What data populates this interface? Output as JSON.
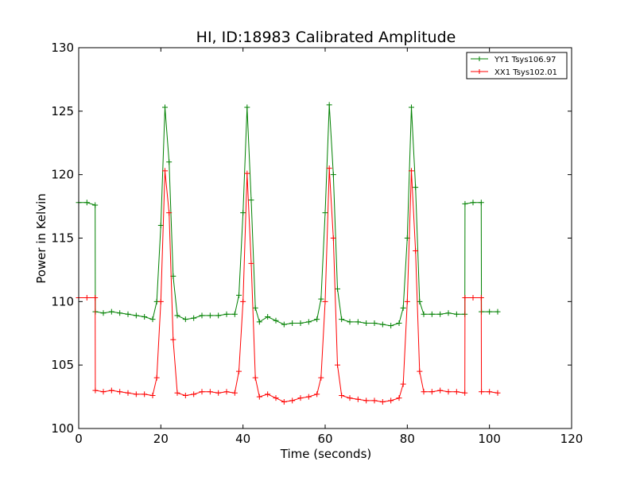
{
  "chart_data": {
    "type": "line",
    "title": "HI, ID:18983 Calibrated Amplitude",
    "xlabel": "Time (seconds)",
    "ylabel": "Power in Kelvin",
    "xlim": [
      0,
      120
    ],
    "ylim": [
      100,
      130
    ],
    "xticks": [
      "0",
      "20",
      "40",
      "60",
      "80",
      "100",
      "120"
    ],
    "yticks": [
      "100",
      "105",
      "110",
      "115",
      "120",
      "125",
      "130"
    ],
    "grid": false,
    "legend_position": "top-right",
    "series": [
      {
        "name": "YY1 Tsys106.97",
        "color": "#008000",
        "marker": "+",
        "x": [
          0,
          2,
          4,
          4.05,
          6,
          8,
          10,
          12,
          14,
          16,
          18,
          19,
          20,
          21,
          22,
          23,
          24,
          26,
          28,
          30,
          32,
          34,
          36,
          38,
          39,
          40,
          41,
          42,
          43,
          44,
          46,
          48,
          50,
          52,
          54,
          56,
          58,
          59,
          60,
          61,
          62,
          63,
          64,
          66,
          68,
          70,
          72,
          74,
          76,
          78,
          79,
          80,
          81,
          82,
          83,
          84,
          86,
          88,
          90,
          92,
          94,
          94.05,
          96,
          98,
          98.05,
          100,
          102
        ],
        "y": [
          117.8,
          117.8,
          117.6,
          109.2,
          109.1,
          109.2,
          109.1,
          109.0,
          108.9,
          108.8,
          108.6,
          110.0,
          116.0,
          125.3,
          121.0,
          112.0,
          108.9,
          108.6,
          108.7,
          108.9,
          108.9,
          108.9,
          109.0,
          109.0,
          110.5,
          117.0,
          125.3,
          118.0,
          109.5,
          108.4,
          108.8,
          108.5,
          108.2,
          108.3,
          108.3,
          108.4,
          108.6,
          110.2,
          117.0,
          125.5,
          120.0,
          111.0,
          108.6,
          108.4,
          108.4,
          108.3,
          108.3,
          108.2,
          108.1,
          108.3,
          109.5,
          115.0,
          125.3,
          119.0,
          110.0,
          109.0,
          109.0,
          109.0,
          109.1,
          109.0,
          109.0,
          117.7,
          117.8,
          117.8,
          109.2,
          109.2,
          109.2
        ]
      },
      {
        "name": "XX1 Tsys102.01",
        "color": "#ff0000",
        "marker": "+",
        "x": [
          0,
          2,
          4,
          4.05,
          6,
          8,
          10,
          12,
          14,
          16,
          18,
          19,
          20,
          21,
          22,
          23,
          24,
          26,
          28,
          30,
          32,
          34,
          36,
          38,
          39,
          40,
          41,
          42,
          43,
          44,
          46,
          48,
          50,
          52,
          54,
          56,
          58,
          59,
          60,
          61,
          62,
          63,
          64,
          66,
          68,
          70,
          72,
          74,
          76,
          78,
          79,
          80,
          81,
          82,
          83,
          84,
          86,
          88,
          90,
          92,
          94,
          94.05,
          96,
          98,
          98.05,
          100,
          102
        ],
        "y": [
          110.3,
          110.3,
          110.3,
          103.0,
          102.9,
          103.0,
          102.9,
          102.8,
          102.7,
          102.7,
          102.6,
          104.0,
          110.0,
          120.3,
          117.0,
          107.0,
          102.8,
          102.6,
          102.7,
          102.9,
          102.9,
          102.8,
          102.9,
          102.8,
          104.5,
          110.0,
          120.1,
          113.0,
          104.0,
          102.5,
          102.7,
          102.4,
          102.1,
          102.2,
          102.4,
          102.5,
          102.7,
          104.0,
          110.0,
          120.5,
          115.0,
          105.0,
          102.6,
          102.4,
          102.3,
          102.2,
          102.2,
          102.1,
          102.2,
          102.4,
          103.5,
          110.0,
          120.3,
          114.0,
          104.5,
          102.9,
          102.9,
          103.0,
          102.9,
          102.9,
          102.8,
          110.3,
          110.3,
          110.3,
          102.9,
          102.9,
          102.8
        ]
      }
    ]
  }
}
